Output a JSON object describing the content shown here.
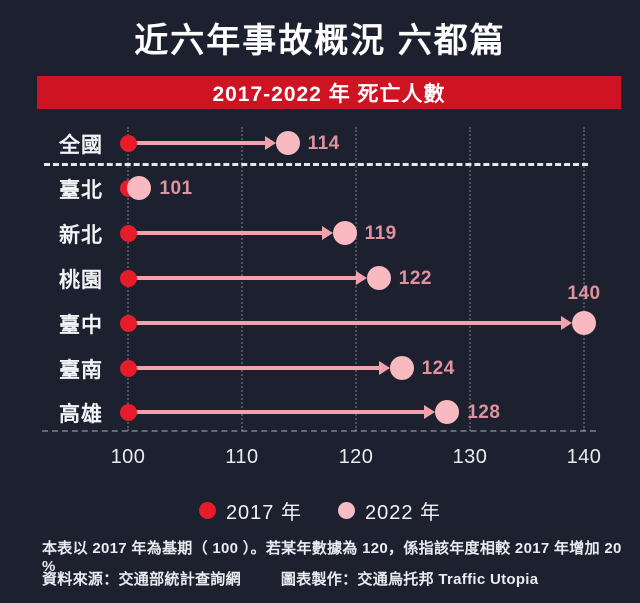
{
  "title": "近六年事故概況 六都篇",
  "banner": {
    "label": "2017-2022 年 死亡人數",
    "bg": "#ce1323"
  },
  "chart_data": {
    "type": "dumbbell",
    "title": "近六年事故概況 六都篇",
    "subtitle": "2017-2022 年 死亡人數",
    "categories": [
      "全國",
      "臺北",
      "新北",
      "桃園",
      "臺中",
      "臺南",
      "高雄"
    ],
    "series": [
      {
        "name": "2017 年",
        "color": "#e71c2a",
        "values": [
          100,
          100,
          100,
          100,
          100,
          100,
          100
        ]
      },
      {
        "name": "2022 年",
        "color": "#f8b9c1",
        "values": [
          114,
          101,
          119,
          122,
          140,
          124,
          128
        ]
      }
    ],
    "x_ticks": [
      100,
      110,
      120,
      130,
      140
    ],
    "xlim": [
      100,
      140
    ],
    "grid": "vertical-dotted",
    "baseline_value": 100,
    "separator_after_category": "全國",
    "legend_position": "bottom-center"
  },
  "legend": [
    {
      "label": "2017 年",
      "color": "#e71c2a"
    },
    {
      "label": "2022 年",
      "color": "#f6bcc3"
    }
  ],
  "footnote": "本表以 2017 年為基期（ 100 ）。若某年數據為 120，係指該年度相較 2017 年增加 20 %",
  "source": "資料來源：交通部統計查詢網",
  "credit": "圖表製作：交通烏托邦 Traffic Utopia",
  "palette": {
    "background": "#1c202f",
    "banner_red": "#ce1323",
    "dot_2017_red": "#e71c2a",
    "dot_2022_pink": "#f8b9c1",
    "connector_pink": "#f1a2ac",
    "value_label_rose": "#e0939e",
    "text_white": "#f3f4f7"
  }
}
